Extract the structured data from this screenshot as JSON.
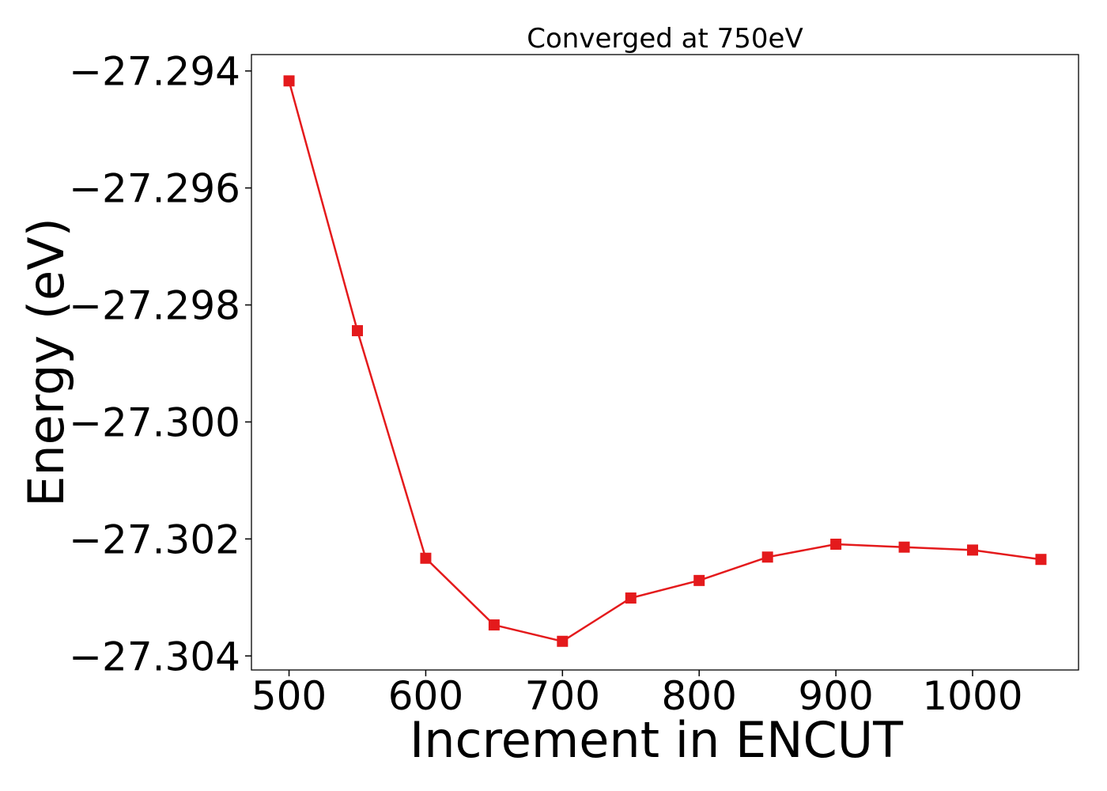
{
  "chart_data": {
    "type": "line",
    "title": "Converged at 750eV",
    "xlabel": "Increment in ENCUT",
    "ylabel": "Energy (eV)",
    "xlim": [
      472.5,
      1077.5
    ],
    "ylim": [
      -27.30424,
      -27.29372
    ],
    "xticks": [
      500,
      600,
      700,
      800,
      900,
      1000
    ],
    "xtick_labels": [
      "500",
      "600",
      "700",
      "800",
      "900",
      "1000"
    ],
    "yticks": [
      -27.294,
      -27.296,
      -27.298,
      -27.3,
      -27.302,
      -27.304
    ],
    "ytick_labels": [
      "−27.294",
      "−27.296",
      "−27.298",
      "−27.300",
      "−27.302",
      "−27.304"
    ],
    "grid": false,
    "series": [
      {
        "color": "#e41a1c",
        "marker": "square",
        "x": [
          500,
          550,
          600,
          650,
          700,
          750,
          800,
          850,
          900,
          950,
          1000,
          1050
        ],
        "y": [
          -27.29417,
          -27.29844,
          -27.30233,
          -27.30347,
          -27.30375,
          -27.30301,
          -27.30271,
          -27.30231,
          -27.30209,
          -27.30214,
          -27.30219,
          -27.30235
        ]
      }
    ]
  }
}
